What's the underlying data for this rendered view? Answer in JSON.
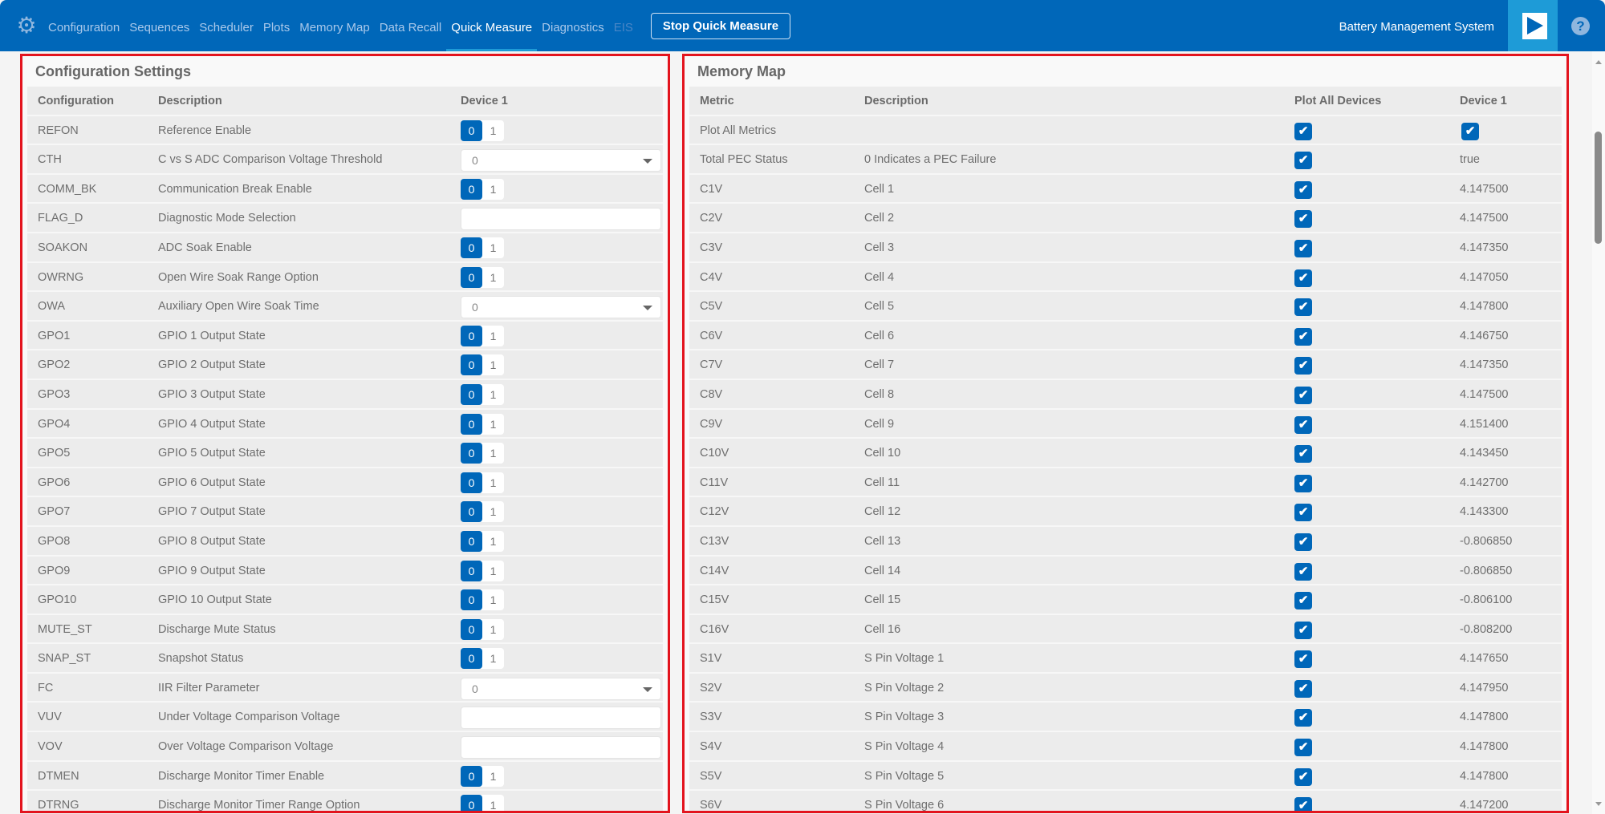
{
  "header": {
    "icon": "gear-icon",
    "nav": [
      {
        "label": "Configuration",
        "state": "normal"
      },
      {
        "label": "Sequences",
        "state": "normal"
      },
      {
        "label": "Scheduler",
        "state": "normal"
      },
      {
        "label": "Plots",
        "state": "normal"
      },
      {
        "label": "Memory Map",
        "state": "normal"
      },
      {
        "label": "Data Recall",
        "state": "normal"
      },
      {
        "label": "Quick Measure",
        "state": "active"
      },
      {
        "label": "Diagnostics",
        "state": "normal"
      },
      {
        "label": "EIS",
        "state": "disabled"
      }
    ],
    "stop_button": "Stop Quick Measure",
    "app_title": "Battery Management System",
    "play_icon": "play-icon",
    "help_icon": "help-icon",
    "colors": {
      "bar": "#0067b9",
      "accent": "#1e9bd7",
      "highlight": "#e3141e"
    }
  },
  "config": {
    "title": "Configuration Settings",
    "columns": [
      "Configuration",
      "Description",
      "Device 1"
    ],
    "rows": [
      {
        "name": "REFON",
        "desc": "Reference Enable",
        "type": "toggle",
        "value": "0",
        "options": [
          "0",
          "1"
        ]
      },
      {
        "name": "CTH",
        "desc": "C vs S ADC Comparison Voltage Threshold",
        "type": "select",
        "value": "0"
      },
      {
        "name": "COMM_BK",
        "desc": "Communication Break Enable",
        "type": "toggle",
        "value": "0",
        "options": [
          "0",
          "1"
        ]
      },
      {
        "name": "FLAG_D",
        "desc": "Diagnostic Mode Selection",
        "type": "input",
        "value": ""
      },
      {
        "name": "SOAKON",
        "desc": "ADC Soak Enable",
        "type": "toggle",
        "value": "0",
        "options": [
          "0",
          "1"
        ]
      },
      {
        "name": "OWRNG",
        "desc": "Open Wire Soak Range Option",
        "type": "toggle",
        "value": "0",
        "options": [
          "0",
          "1"
        ]
      },
      {
        "name": "OWA",
        "desc": "Auxiliary Open Wire Soak Time",
        "type": "select",
        "value": "0"
      },
      {
        "name": "GPO1",
        "desc": "GPIO 1 Output State",
        "type": "toggle",
        "value": "0",
        "options": [
          "0",
          "1"
        ]
      },
      {
        "name": "GPO2",
        "desc": "GPIO 2 Output State",
        "type": "toggle",
        "value": "0",
        "options": [
          "0",
          "1"
        ]
      },
      {
        "name": "GPO3",
        "desc": "GPIO 3 Output State",
        "type": "toggle",
        "value": "0",
        "options": [
          "0",
          "1"
        ]
      },
      {
        "name": "GPO4",
        "desc": "GPIO 4 Output State",
        "type": "toggle",
        "value": "0",
        "options": [
          "0",
          "1"
        ]
      },
      {
        "name": "GPO5",
        "desc": "GPIO 5 Output State",
        "type": "toggle",
        "value": "0",
        "options": [
          "0",
          "1"
        ]
      },
      {
        "name": "GPO6",
        "desc": "GPIO 6 Output State",
        "type": "toggle",
        "value": "0",
        "options": [
          "0",
          "1"
        ]
      },
      {
        "name": "GPO7",
        "desc": "GPIO 7 Output State",
        "type": "toggle",
        "value": "0",
        "options": [
          "0",
          "1"
        ]
      },
      {
        "name": "GPO8",
        "desc": "GPIO 8 Output State",
        "type": "toggle",
        "value": "0",
        "options": [
          "0",
          "1"
        ]
      },
      {
        "name": "GPO9",
        "desc": "GPIO 9 Output State",
        "type": "toggle",
        "value": "0",
        "options": [
          "0",
          "1"
        ]
      },
      {
        "name": "GPO10",
        "desc": "GPIO 10 Output State",
        "type": "toggle",
        "value": "0",
        "options": [
          "0",
          "1"
        ]
      },
      {
        "name": "MUTE_ST",
        "desc": "Discharge Mute Status",
        "type": "toggle",
        "value": "0",
        "options": [
          "0",
          "1"
        ]
      },
      {
        "name": "SNAP_ST",
        "desc": "Snapshot Status",
        "type": "toggle",
        "value": "0",
        "options": [
          "0",
          "1"
        ]
      },
      {
        "name": "FC",
        "desc": "IIR Filter Parameter",
        "type": "select",
        "value": "0"
      },
      {
        "name": "VUV",
        "desc": "Under Voltage Comparison Voltage",
        "type": "input",
        "value": ""
      },
      {
        "name": "VOV",
        "desc": "Over Voltage Comparison Voltage",
        "type": "input",
        "value": ""
      },
      {
        "name": "DTMEN",
        "desc": "Discharge Monitor Timer Enable",
        "type": "toggle",
        "value": "0",
        "options": [
          "0",
          "1"
        ]
      },
      {
        "name": "DTRNG",
        "desc": "Discharge Monitor Timer Range Option",
        "type": "toggle",
        "value": "0",
        "options": [
          "0",
          "1"
        ]
      }
    ]
  },
  "memory": {
    "title": "Memory Map",
    "columns": [
      "Metric",
      "Description",
      "Plot All Devices",
      "Device 1"
    ],
    "rows": [
      {
        "metric": "Plot All Metrics",
        "desc": "",
        "plot": true,
        "device1": "",
        "device1_checkbox": true
      },
      {
        "metric": "Total PEC Status",
        "desc": "0 Indicates a PEC Failure",
        "plot": true,
        "device1": "true"
      },
      {
        "metric": "C1V",
        "desc": "Cell 1",
        "plot": true,
        "device1": "4.147500"
      },
      {
        "metric": "C2V",
        "desc": "Cell 2",
        "plot": true,
        "device1": "4.147500"
      },
      {
        "metric": "C3V",
        "desc": "Cell 3",
        "plot": true,
        "device1": "4.147350"
      },
      {
        "metric": "C4V",
        "desc": "Cell 4",
        "plot": true,
        "device1": "4.147050"
      },
      {
        "metric": "C5V",
        "desc": "Cell 5",
        "plot": true,
        "device1": "4.147800"
      },
      {
        "metric": "C6V",
        "desc": "Cell 6",
        "plot": true,
        "device1": "4.146750"
      },
      {
        "metric": "C7V",
        "desc": "Cell 7",
        "plot": true,
        "device1": "4.147350"
      },
      {
        "metric": "C8V",
        "desc": "Cell 8",
        "plot": true,
        "device1": "4.147500"
      },
      {
        "metric": "C9V",
        "desc": "Cell 9",
        "plot": true,
        "device1": "4.151400"
      },
      {
        "metric": "C10V",
        "desc": "Cell 10",
        "plot": true,
        "device1": "4.143450"
      },
      {
        "metric": "C11V",
        "desc": "Cell 11",
        "plot": true,
        "device1": "4.142700"
      },
      {
        "metric": "C12V",
        "desc": "Cell 12",
        "plot": true,
        "device1": "4.143300"
      },
      {
        "metric": "C13V",
        "desc": "Cell 13",
        "plot": true,
        "device1": "-0.806850"
      },
      {
        "metric": "C14V",
        "desc": "Cell 14",
        "plot": true,
        "device1": "-0.806850"
      },
      {
        "metric": "C15V",
        "desc": "Cell 15",
        "plot": true,
        "device1": "-0.806100"
      },
      {
        "metric": "C16V",
        "desc": "Cell 16",
        "plot": true,
        "device1": "-0.808200"
      },
      {
        "metric": "S1V",
        "desc": "S Pin Voltage 1",
        "plot": true,
        "device1": "4.147650"
      },
      {
        "metric": "S2V",
        "desc": "S Pin Voltage 2",
        "plot": true,
        "device1": "4.147950"
      },
      {
        "metric": "S3V",
        "desc": "S Pin Voltage 3",
        "plot": true,
        "device1": "4.147800"
      },
      {
        "metric": "S4V",
        "desc": "S Pin Voltage 4",
        "plot": true,
        "device1": "4.147800"
      },
      {
        "metric": "S5V",
        "desc": "S Pin Voltage 5",
        "plot": true,
        "device1": "4.147800"
      },
      {
        "metric": "S6V",
        "desc": "S Pin Voltage 6",
        "plot": true,
        "device1": "4.147200"
      }
    ]
  }
}
